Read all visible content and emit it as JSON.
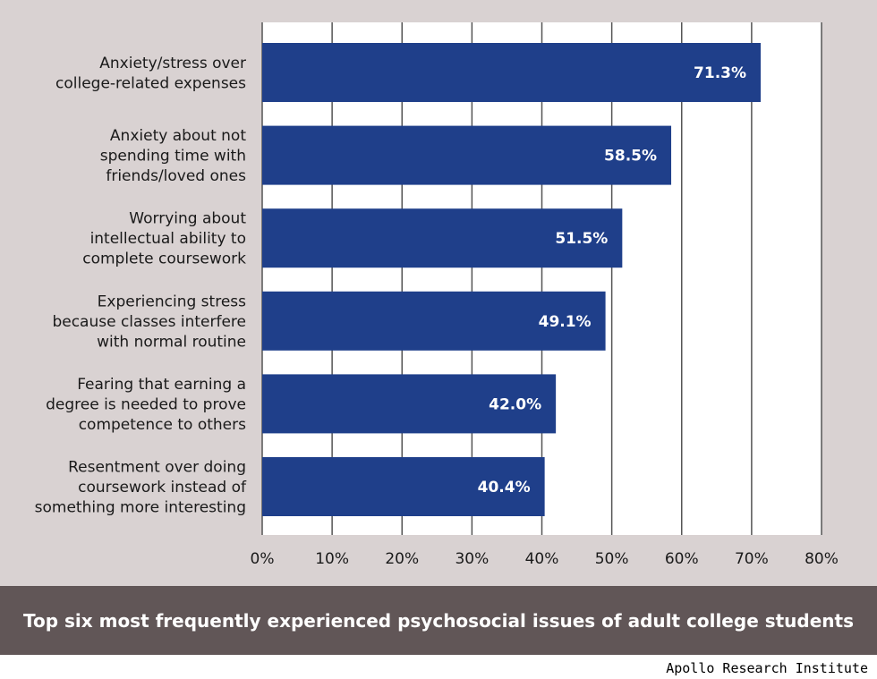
{
  "chart_data": {
    "type": "bar",
    "orientation": "horizontal",
    "categories": [
      [
        "Anxiety/stress over",
        "college-related expenses"
      ],
      [
        "Anxiety about not",
        "spending time with",
        "friends/loved ones"
      ],
      [
        "Worrying about",
        "intellectual ability to",
        "complete coursework"
      ],
      [
        "Experiencing stress",
        "because classes interfere",
        "with normal routine"
      ],
      [
        "Fearing that earning a",
        "degree is needed to prove",
        "competence to others"
      ],
      [
        "Resentment over doing",
        "coursework instead of",
        "something more interesting"
      ]
    ],
    "values": [
      71.3,
      58.5,
      51.5,
      49.1,
      42.0,
      40.4
    ],
    "data_labels": [
      "71.3%",
      "58.5%",
      "51.5%",
      "49.1%",
      "42.0%",
      "40.4%"
    ],
    "xlim": [
      0,
      80
    ],
    "xticks": [
      0,
      10,
      20,
      30,
      40,
      50,
      60,
      70,
      80
    ],
    "xtick_labels": [
      "0%",
      "10%",
      "20%",
      "30%",
      "40%",
      "50%",
      "60%",
      "70%",
      "80%"
    ],
    "grid": true,
    "bar_color": "#1f3f8a",
    "caption": "Top six most frequently experienced psychosocial issues of adult college students"
  },
  "source": "Apollo Research Institute",
  "colors": {
    "panel_background": "#d9d2d2",
    "plot_background": "#ffffff",
    "caption_background": "#615657",
    "gridline": "#555555"
  }
}
